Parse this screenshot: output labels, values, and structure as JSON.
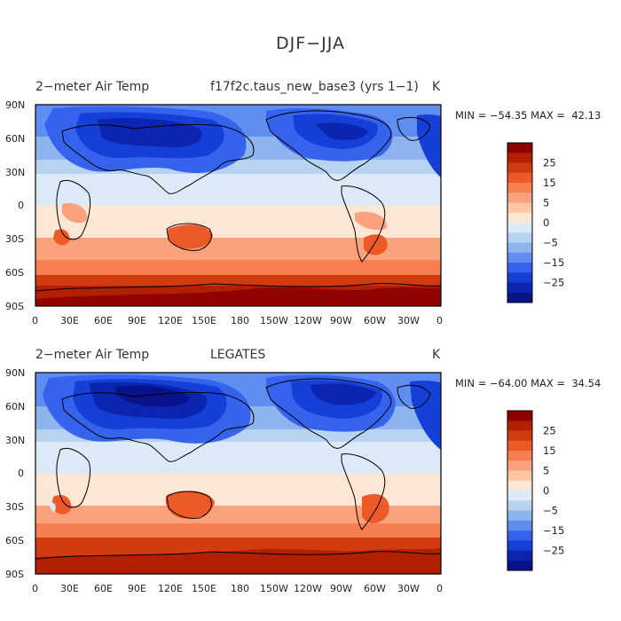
{
  "title": "DJF−JJA",
  "panels": [
    {
      "name": "model",
      "left_title": "2−meter Air Temp",
      "center_title": "f17f2c.taus_new_base3 (yrs 1−1)",
      "units": "K",
      "min_max": "MIN = −54.35 MAX =  42.13"
    },
    {
      "name": "obs",
      "left_title": "2−meter Air Temp",
      "center_title": "LEGATES",
      "units": "K",
      "min_max": "MIN = −64.00 MAX =  34.54"
    }
  ],
  "lat_labels": [
    "90N",
    "60N",
    "30N",
    "0",
    "30S",
    "60S",
    "90S"
  ],
  "lon_labels": [
    "0",
    "30E",
    "60E",
    "90E",
    "120E",
    "150E",
    "180",
    "150W",
    "120W",
    "90W",
    "60W",
    "30W",
    "0"
  ],
  "colorbar": {
    "labels": [
      "25",
      "15",
      "5",
      "0",
      "−5",
      "−15",
      "−25"
    ],
    "colors": [
      "#8b0000",
      "#b22000",
      "#d23a10",
      "#ec5a28",
      "#f57f50",
      "#f9a27c",
      "#fcc5a6",
      "#fde6d4",
      "#dceaf7",
      "#b8d2f2",
      "#8db4ed",
      "#5f8df0",
      "#3563ee",
      "#1540d8",
      "#0b25b0",
      "#08128a"
    ]
  },
  "chart_data": [
    {
      "type": "heatmap",
      "title": "DJF−JJA",
      "subtitle": "f17f2c.taus_new_base3 (yrs 1−1)",
      "field": "2−meter Air Temp",
      "units": "K",
      "min": -54.35,
      "max": 42.13,
      "x_ticks": [
        "0",
        "30E",
        "60E",
        "90E",
        "120E",
        "150E",
        "180",
        "150W",
        "120W",
        "90W",
        "60W",
        "30W",
        "0"
      ],
      "y_ticks": [
        "90N",
        "60N",
        "30N",
        "0",
        "30S",
        "60S",
        "90S"
      ],
      "levels": [
        -30,
        -25,
        -20,
        -15,
        -10,
        -5,
        0,
        5,
        10,
        15,
        20,
        25,
        30
      ]
    },
    {
      "type": "heatmap",
      "title": "DJF−JJA",
      "subtitle": "LEGATES",
      "field": "2−meter Air Temp",
      "units": "K",
      "min": -64.0,
      "max": 34.54,
      "x_ticks": [
        "0",
        "30E",
        "60E",
        "90E",
        "120E",
        "150E",
        "180",
        "150W",
        "120W",
        "90W",
        "60W",
        "30W",
        "0"
      ],
      "y_ticks": [
        "90N",
        "60N",
        "30N",
        "0",
        "30S",
        "60S",
        "90S"
      ],
      "levels": [
        -30,
        -25,
        -20,
        -15,
        -10,
        -5,
        0,
        5,
        10,
        15,
        20,
        25,
        30
      ]
    }
  ]
}
